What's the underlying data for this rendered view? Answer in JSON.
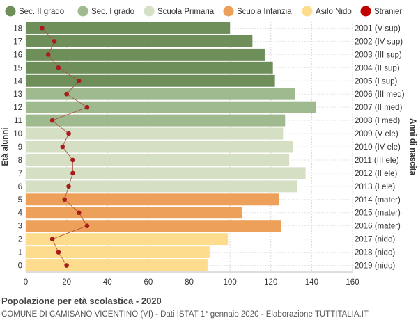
{
  "chart_data": {
    "type": "bar",
    "orientation": "horizontal",
    "title": "Popolazione per età scolastica - 2020",
    "subtitle": "COMUNE DI CAMISANO VICENTINO (VI) - Dati ISTAT 1° gennaio 2020 - Elaborazione TUTTITALIA.IT",
    "ylabel_left": "Età alunni",
    "ylabel_right": "Anni di nascita",
    "xlim": [
      0,
      160
    ],
    "x_ticks": [
      0,
      20,
      40,
      60,
      80,
      100,
      120,
      140,
      160
    ],
    "grid": true,
    "legend_position": "top",
    "legend": [
      {
        "name": "Sec. II grado",
        "color": "#6e8f5a",
        "shape": "circle"
      },
      {
        "name": "Sec. I grado",
        "color": "#9fba8e",
        "shape": "circle"
      },
      {
        "name": "Scuola Primaria",
        "color": "#d4dfc4",
        "shape": "circle"
      },
      {
        "name": "Scuola Infanzia",
        "color": "#eda05a",
        "shape": "circle"
      },
      {
        "name": "Asilo Nido",
        "color": "#fddc8e",
        "shape": "circle"
      },
      {
        "name": "Stranieri",
        "color": "#c00000",
        "shape": "circle"
      }
    ],
    "rows": [
      {
        "age": "18",
        "birth": "2001 (V sup)",
        "value": 100,
        "stranieri": 8,
        "group": 0
      },
      {
        "age": "17",
        "birth": "2002 (IV sup)",
        "value": 111,
        "stranieri": 14,
        "group": 0
      },
      {
        "age": "16",
        "birth": "2003 (III sup)",
        "value": 117,
        "stranieri": 11,
        "group": 0
      },
      {
        "age": "15",
        "birth": "2004 (II sup)",
        "value": 121,
        "stranieri": 16,
        "group": 0
      },
      {
        "age": "14",
        "birth": "2005 (I sup)",
        "value": 122,
        "stranieri": 26,
        "group": 0
      },
      {
        "age": "13",
        "birth": "2006 (III med)",
        "value": 132,
        "stranieri": 20,
        "group": 1
      },
      {
        "age": "12",
        "birth": "2007 (II med)",
        "value": 142,
        "stranieri": 30,
        "group": 1
      },
      {
        "age": "11",
        "birth": "2008 (I med)",
        "value": 127,
        "stranieri": 13,
        "group": 1
      },
      {
        "age": "10",
        "birth": "2009 (V ele)",
        "value": 126,
        "stranieri": 21,
        "group": 2
      },
      {
        "age": "9",
        "birth": "2010 (IV ele)",
        "value": 131,
        "stranieri": 18,
        "group": 2
      },
      {
        "age": "8",
        "birth": "2011 (III ele)",
        "value": 129,
        "stranieri": 23,
        "group": 2
      },
      {
        "age": "7",
        "birth": "2012 (II ele)",
        "value": 137,
        "stranieri": 23,
        "group": 2
      },
      {
        "age": "6",
        "birth": "2013 (I ele)",
        "value": 133,
        "stranieri": 21,
        "group": 2
      },
      {
        "age": "5",
        "birth": "2014 (mater)",
        "value": 124,
        "stranieri": 19,
        "group": 3
      },
      {
        "age": "4",
        "birth": "2015 (mater)",
        "value": 106,
        "stranieri": 26,
        "group": 3
      },
      {
        "age": "3",
        "birth": "2016 (mater)",
        "value": 125,
        "stranieri": 30,
        "group": 3
      },
      {
        "age": "2",
        "birth": "2017 (nido)",
        "value": 99,
        "stranieri": 13,
        "group": 4
      },
      {
        "age": "1",
        "birth": "2018 (nido)",
        "value": 90,
        "stranieri": 16,
        "group": 4
      },
      {
        "age": "0",
        "birth": "2019 (nido)",
        "value": 89,
        "stranieri": 20,
        "group": 4
      }
    ]
  }
}
